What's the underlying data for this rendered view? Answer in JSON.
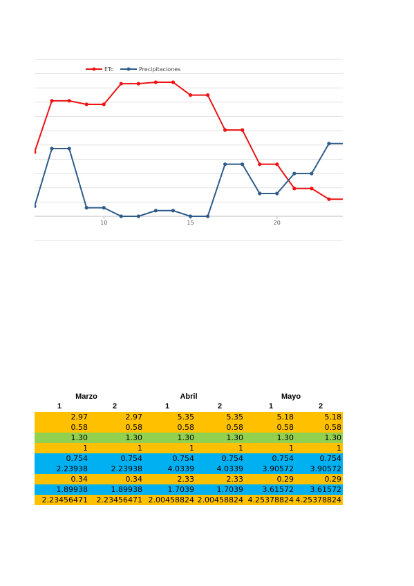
{
  "chart_data": {
    "type": "line",
    "x": [
      6,
      7,
      8,
      9,
      10,
      11,
      12,
      13,
      14,
      15,
      16,
      17,
      18,
      19,
      20,
      21,
      22,
      23,
      24
    ],
    "x_tick_labels": [
      "10",
      "15",
      "20"
    ],
    "x_ticks": [
      10,
      15,
      20
    ],
    "xlim": [
      6,
      23.8
    ],
    "ylim": [
      0,
      11
    ],
    "grid": true,
    "legend_position": "top-left",
    "series": [
      {
        "name": "ETc",
        "color": "#ee1111",
        "values": [
          4.5,
          8.1,
          8.1,
          7.85,
          7.85,
          9.3,
          9.3,
          9.4,
          9.4,
          8.5,
          8.5,
          6.05,
          6.05,
          3.65,
          3.65,
          1.95,
          1.95,
          1.2,
          1.2
        ]
      },
      {
        "name": "Precipitaciones",
        "color": "#2e5b8a",
        "values": [
          0.7,
          4.75,
          4.75,
          0.6,
          0.6,
          0.0,
          0.0,
          0.4,
          0.4,
          0.0,
          0.0,
          3.65,
          3.65,
          1.6,
          1.6,
          3.0,
          3.0,
          5.1,
          5.1
        ]
      }
    ]
  },
  "table": {
    "months": [
      "Marzo",
      "Abril",
      "Mayo"
    ],
    "subheaders": [
      "1",
      "2",
      "1",
      "2",
      "1",
      "2"
    ],
    "rows": [
      {
        "color": "#ffc000",
        "cells": [
          "2.97",
          "2.97",
          "5.35",
          "5.35",
          "5.18",
          "5.18"
        ]
      },
      {
        "color": "#ffc000",
        "cells": [
          "0.58",
          "0.58",
          "0.58",
          "0.58",
          "0.58",
          "0.58"
        ]
      },
      {
        "color": "#92d050",
        "cells": [
          "1.30",
          "1.30",
          "1.30",
          "1.30",
          "1.30",
          "1.30"
        ]
      },
      {
        "color": "#ffc000",
        "cells": [
          "1",
          "1",
          "1",
          "1",
          "1",
          "1"
        ]
      },
      {
        "color": "#00b0f0",
        "cells": [
          "0.754",
          "0.754",
          "0.754",
          "0.754",
          "0.754",
          "0.754"
        ]
      },
      {
        "color": "#00b0f0",
        "cells": [
          "2.23938",
          "2.23938",
          "4.0339",
          "4.0339",
          "3.90572",
          "3.90572"
        ]
      },
      {
        "color": "#ffc000",
        "cells": [
          "0.34",
          "0.34",
          "2.33",
          "2.33",
          "0.29",
          "0.29"
        ]
      },
      {
        "color": "#00b0f0",
        "cells": [
          "1.89938",
          "1.89938",
          "1.7039",
          "1.7039",
          "3.61572",
          "3.61572"
        ]
      },
      {
        "color": "#ffc000",
        "cells": [
          "2.23456471",
          "2.23456471",
          "2.00458824",
          "2.00458824",
          "4.25378824",
          "4.25378824"
        ]
      }
    ]
  }
}
